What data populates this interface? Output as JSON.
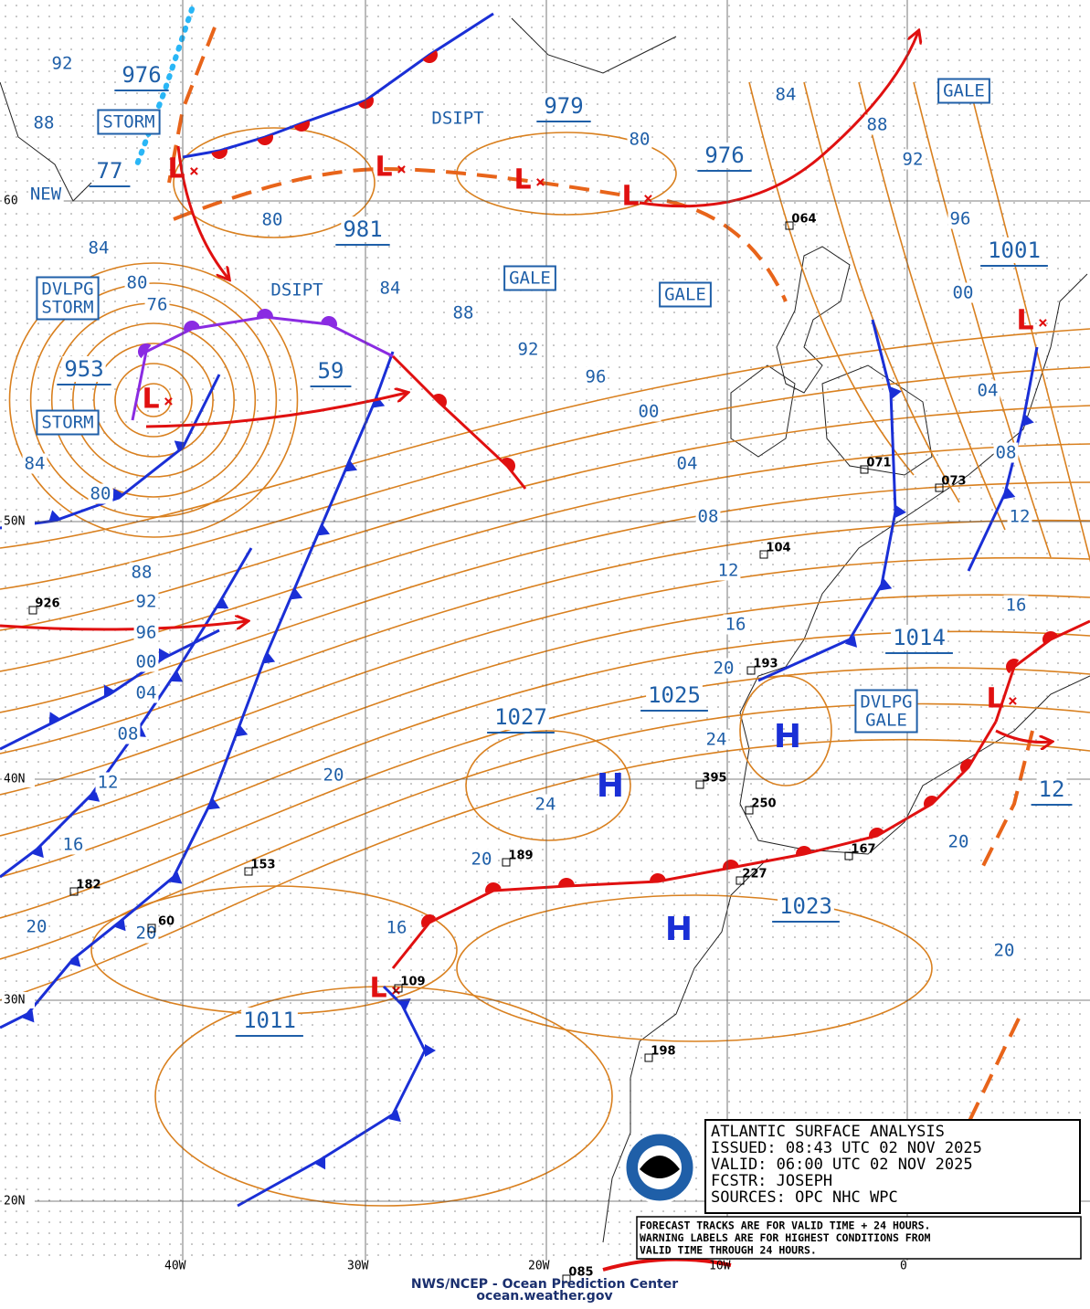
{
  "legend": {
    "title": "ATLANTIC SURFACE ANALYSIS",
    "issued": "ISSUED: 08:43 UTC 02 NOV 2025",
    "valid": "VALID:  06:00 UTC 02 NOV 2025",
    "forecaster": "FCSTR:  JOSEPH",
    "sources": "SOURCES: OPC NHC WPC"
  },
  "note": [
    "FORECAST TRACKS ARE FOR VALID TIME + 24 HOURS.",
    "WARNING LABELS ARE FOR HIGHEST CONDITIONS FROM",
    "VALID TIME THROUGH 24 HOURS."
  ],
  "footer": [
    "NWS/NCEP - Ocean Prediction Center",
    "ocean.weather.gov"
  ],
  "latitudes": [
    "60",
    "50N",
    "40N",
    "30N",
    "20N"
  ],
  "longitudes": [
    "40W",
    "30W",
    "20W",
    "10W",
    "0"
  ],
  "pressure_centers": [
    "976",
    "979",
    "976",
    "981",
    "953",
    "59",
    "77",
    "1001",
    "1014",
    "1025",
    "1027",
    "1023",
    "1011",
    "12"
  ],
  "warnings": [
    [
      "STORM"
    ],
    [
      "STORM"
    ],
    [
      "GALE"
    ],
    [
      "GALE"
    ],
    [
      "GALE"
    ],
    [
      "DVLPG",
      "STORM"
    ],
    [
      "DVLPG",
      "GALE"
    ]
  ],
  "annotations": [
    "DSIPT",
    "DSIPT",
    "NEW"
  ],
  "isobar_labels": [
    "92",
    "88",
    "84",
    "80",
    "76",
    "84",
    "80",
    "80",
    "84",
    "88",
    "92",
    "96",
    "00",
    "04",
    "08",
    "12",
    "16",
    "20",
    "24",
    "24",
    "20",
    "20",
    "16",
    "20",
    "20",
    "20",
    "20",
    "88",
    "92",
    "96",
    "00",
    "04",
    "08",
    "12",
    "16",
    "80",
    "84",
    "88",
    "92",
    "96",
    "00",
    "04",
    "08",
    "12",
    "16"
  ],
  "highs": [
    "H",
    "H",
    "H"
  ],
  "lows": [
    "L",
    "L",
    "L",
    "L",
    "L",
    "L",
    "L",
    "L"
  ],
  "stations": [
    "064",
    "071",
    "073",
    "104",
    "193",
    "395",
    "250",
    "189",
    "227",
    "167",
    "153",
    "182",
    "109",
    "198",
    "926",
    "085",
    "60"
  ]
}
